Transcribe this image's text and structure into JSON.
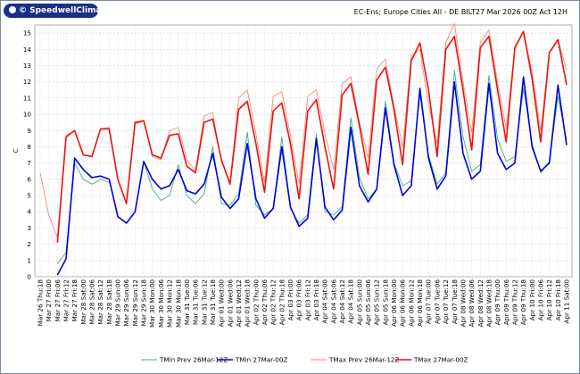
{
  "logo": {
    "text": "© SpeedwellClimate.com"
  },
  "chart_data": {
    "type": "line",
    "title": "EC-Ens; Europe Cities All - DE BILT27 Mar 2026 00Z Act 12H",
    "xlabel": "",
    "ylabel": "C",
    "ylim": [
      0,
      15.5
    ],
    "yticks": [
      0,
      1,
      2,
      3,
      4,
      5,
      6,
      7,
      8,
      9,
      10,
      11,
      12,
      13,
      14,
      15
    ],
    "grid": true,
    "legend_placement": "bottom",
    "categories": [
      "Mar 26 Thu:18",
      "Mar 27 Fri:00",
      "Mar 27 Fri:06",
      "Mar 27 Fri:12",
      "Mar 27 Fri:18",
      "Mar 28 Sat:00",
      "Mar 28 Sat:06",
      "Mar 28 Sat:12",
      "Mar 28 Sat:18",
      "Mar 29 Sun:00",
      "Mar 29 Sun:06",
      "Mar 29 Sun:12",
      "Mar 29 Sun:18",
      "Mar 30 Mon:00",
      "Mar 30 Mon:06",
      "Mar 30 Mon:12",
      "Mar 30 Mon:18",
      "Mar 31 Tue:00",
      "Mar 31 Tue:06",
      "Mar 31 Tue:12",
      "Mar 31 Tue:18",
      "Apr 01 Wed:00",
      "Apr 01 Wed:06",
      "Apr 01 Wed:12",
      "Apr 01 Wed:18",
      "Apr 02 Thu:00",
      "Apr 02 Thu:06",
      "Apr 02 Thu:12",
      "Apr 02 Thu:18",
      "Apr 03 Fri:00",
      "Apr 03 Fri:06",
      "Apr 03 Fri:12",
      "Apr 03 Fri:18",
      "Apr 04 Sat:00",
      "Apr 04 Sat:06",
      "Apr 04 Sat:12",
      "Apr 04 Sat:18",
      "Apr 05 Sun:00",
      "Apr 05 Sun:06",
      "Apr 05 Sun:12",
      "Apr 05 Sun:18",
      "Apr 06 Mon:00",
      "Apr 06 Mon:06",
      "Apr 06 Mon:12",
      "Apr 06 Mon:18",
      "Apr 07 Tue:00",
      "Apr 07 Tue:06",
      "Apr 07 Tue:12",
      "Apr 07 Tue:18",
      "Apr 08 Wed:00",
      "Apr 08 Wed:06",
      "Apr 08 Wed:12",
      "Apr 08 Wed:18",
      "Apr 09 Thu:00",
      "Apr 09 Thu:06",
      "Apr 09 Thu:12",
      "Apr 09 Thu:18",
      "Apr 10 Fri:00",
      "Apr 10 Fri:06",
      "Apr 10 Fri:12",
      "Apr 10 Fri:18",
      "Apr 11 Sat:00"
    ],
    "series": [
      {
        "name": "TMin Prev 26Mar-12Z",
        "color": "#44aa88",
        "width": 0.9,
        "values": [
          3.8,
          null,
          0.8,
          1.5,
          7.0,
          6.0,
          5.7,
          6.0,
          5.8,
          null,
          null,
          null,
          7.1,
          5.4,
          4.7,
          5.0,
          6.9,
          5.0,
          4.5,
          5.1,
          8.0,
          4.5,
          4.4,
          5.1,
          8.9,
          4.4,
          3.8,
          4.2,
          8.6,
          4.2,
          3.3,
          3.8,
          8.8,
          4.0,
          3.8,
          4.3,
          9.8,
          6.1,
          4.8,
          5.4,
          10.8,
          7.0,
          5.6,
          5.9,
          11.2,
          7.5,
          5.7,
          6.4,
          12.7,
          8.6,
          6.5,
          6.9,
          12.4,
          8.5,
          7.1,
          7.4,
          11.6,
          8.2,
          6.4,
          7.1,
          11.1,
          8.4
        ]
      },
      {
        "name": "TMin 27Mar-00Z",
        "color": "#0000dd",
        "width": 1.6,
        "values": [
          null,
          null,
          0.1,
          1.1,
          7.3,
          6.6,
          6.1,
          6.2,
          6.0,
          3.7,
          3.3,
          4.0,
          7.1,
          6.0,
          5.4,
          5.6,
          6.6,
          5.3,
          5.1,
          5.7,
          7.6,
          4.9,
          4.2,
          4.8,
          8.2,
          4.8,
          3.6,
          4.2,
          8.0,
          4.3,
          3.1,
          3.6,
          8.5,
          4.3,
          3.5,
          4.1,
          9.2,
          5.6,
          4.6,
          5.4,
          10.4,
          6.9,
          5.0,
          5.6,
          11.6,
          7.3,
          5.4,
          6.2,
          12.0,
          7.6,
          6.0,
          6.5,
          11.9,
          7.6,
          6.6,
          7.0,
          12.3,
          8.0,
          6.5,
          7.0,
          11.8,
          8.1
        ]
      },
      {
        "name": "TMax Prev 26Mar-12Z",
        "color": "#f09070",
        "width": 0.9,
        "values": [
          6.4,
          3.8,
          2.4,
          8.7,
          9.0,
          7.5,
          7.4,
          9.1,
          9.2,
          6.0,
          4.5,
          9.4,
          9.6,
          7.4,
          7.2,
          9.0,
          9.2,
          7.2,
          6.5,
          9.9,
          10.1,
          7.1,
          5.8,
          11.0,
          11.5,
          8.8,
          5.8,
          11.1,
          11.4,
          8.7,
          5.7,
          11.1,
          11.5,
          8.8,
          6.6,
          11.9,
          12.3,
          9.5,
          7.3,
          12.8,
          13.4,
          10.5,
          8.0,
          13.6,
          14.0,
          10.6,
          8.2,
          14.4,
          15.6,
          12.0,
          8.9,
          14.4,
          15.2,
          12.0,
          9.1,
          14.0,
          15.1,
          12.6,
          9.0,
          13.8,
          14.6,
          12.7
        ]
      },
      {
        "name": "TMax 27Mar-00Z",
        "color": "#ee1111",
        "width": 1.6,
        "values": [
          null,
          null,
          2.1,
          8.6,
          9.0,
          7.5,
          7.4,
          9.1,
          9.1,
          6.0,
          4.5,
          9.5,
          9.6,
          7.5,
          7.3,
          8.7,
          8.8,
          6.8,
          6.4,
          9.5,
          9.7,
          7.2,
          5.7,
          10.3,
          10.8,
          8.2,
          5.2,
          10.2,
          10.7,
          8.2,
          4.8,
          10.2,
          10.9,
          8.0,
          5.4,
          11.2,
          11.9,
          9.3,
          6.3,
          12.1,
          12.9,
          10.3,
          6.9,
          13.3,
          14.4,
          11.5,
          7.4,
          14.0,
          14.8,
          11.5,
          7.8,
          14.1,
          14.8,
          11.5,
          8.3,
          14.1,
          15.1,
          12.2,
          8.3,
          13.8,
          14.6,
          11.8
        ]
      }
    ]
  }
}
